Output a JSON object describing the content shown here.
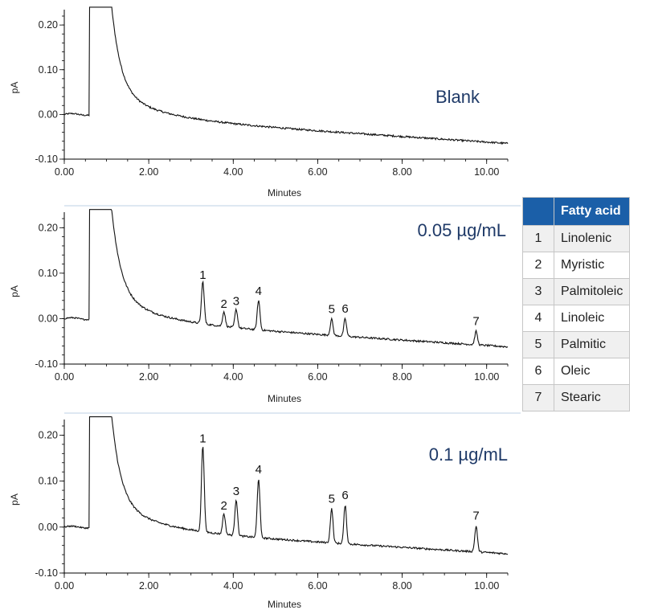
{
  "chart_data": [
    {
      "type": "line",
      "panel_label": "Blank",
      "xlabel": "Minutes",
      "ylabel": "pA",
      "xlim": [
        0,
        10.5
      ],
      "ylim": [
        -0.1,
        0.22
      ],
      "x_ticks": [
        "0.00",
        "2.00",
        "4.00",
        "6.00",
        "8.00",
        "10.00"
      ],
      "x_tick_values": [
        0,
        2,
        4,
        6,
        8,
        10
      ],
      "y_ticks": [
        "-0.10",
        "0.00",
        "0.10",
        "0.20"
      ],
      "y_tick_values": [
        -0.1,
        0,
        0.1,
        0.2
      ],
      "baseline": {
        "start": 0.0,
        "end": -0.065
      },
      "peaks": []
    },
    {
      "type": "line",
      "panel_label": "0.05 µg/mL",
      "xlabel": "Minutes",
      "ylabel": "pA",
      "xlim": [
        0,
        10.5
      ],
      "ylim": [
        -0.1,
        0.22
      ],
      "x_ticks": [
        "0.00",
        "2.00",
        "4.00",
        "6.00",
        "8.00",
        "10.00"
      ],
      "x_tick_values": [
        0,
        2,
        4,
        6,
        8,
        10
      ],
      "y_ticks": [
        "-0.10",
        "0.00",
        "0.10",
        "0.20"
      ],
      "y_tick_values": [
        -0.1,
        0,
        0.1,
        0.2
      ],
      "baseline": {
        "start": 0.0,
        "end": -0.062
      },
      "peaks": [
        {
          "label": "1",
          "x": 3.28,
          "y": 0.073
        },
        {
          "label": "2",
          "x": 3.78,
          "y": 0.01
        },
        {
          "label": "3",
          "x": 4.07,
          "y": 0.016
        },
        {
          "label": "4",
          "x": 4.6,
          "y": 0.038
        },
        {
          "label": "5",
          "x": 6.33,
          "y": -0.002
        },
        {
          "label": "6",
          "x": 6.65,
          "y": -0.001
        },
        {
          "label": "7",
          "x": 9.75,
          "y": -0.028
        }
      ]
    },
    {
      "type": "line",
      "panel_label": "0.1 µg/mL",
      "xlabel": "Minutes",
      "ylabel": "pA",
      "xlim": [
        0,
        10.5
      ],
      "ylim": [
        -0.1,
        0.22
      ],
      "x_ticks": [
        "0.00",
        "2.00",
        "4.00",
        "6.00",
        "8.00",
        "10.00"
      ],
      "x_tick_values": [
        0,
        2,
        4,
        6,
        8,
        10
      ],
      "y_ticks": [
        "-0.10",
        "0.00",
        "0.10",
        "0.20"
      ],
      "y_tick_values": [
        -0.1,
        0,
        0.1,
        0.2
      ],
      "baseline": {
        "start": 0.0,
        "end": -0.058
      },
      "peaks": [
        {
          "label": "1",
          "x": 3.28,
          "y": 0.17
        },
        {
          "label": "2",
          "x": 3.78,
          "y": 0.024
        },
        {
          "label": "3",
          "x": 4.07,
          "y": 0.056
        },
        {
          "label": "4",
          "x": 4.6,
          "y": 0.103
        },
        {
          "label": "5",
          "x": 6.33,
          "y": 0.039
        },
        {
          "label": "6",
          "x": 6.65,
          "y": 0.047
        },
        {
          "label": "7",
          "x": 9.75,
          "y": 0.002
        }
      ]
    }
  ],
  "legend_table": {
    "header": [
      "",
      "Fatty acid"
    ],
    "rows": [
      {
        "num": "1",
        "name": "Linolenic"
      },
      {
        "num": "2",
        "name": "Myristic"
      },
      {
        "num": "3",
        "name": "Palmitoleic"
      },
      {
        "num": "4",
        "name": "Linoleic"
      },
      {
        "num": "5",
        "name": "Palmitic"
      },
      {
        "num": "6",
        "name": "Oleic"
      },
      {
        "num": "7",
        "name": "Stearic"
      }
    ],
    "colors": {
      "header_bg": "#1b5fa8",
      "header_text": "#ffffff",
      "alt_row_bg": "#f0f0f0"
    }
  },
  "colors": {
    "panel_label": "#1f3a68",
    "trace": "#111111",
    "separator": "#c9d9ea"
  }
}
